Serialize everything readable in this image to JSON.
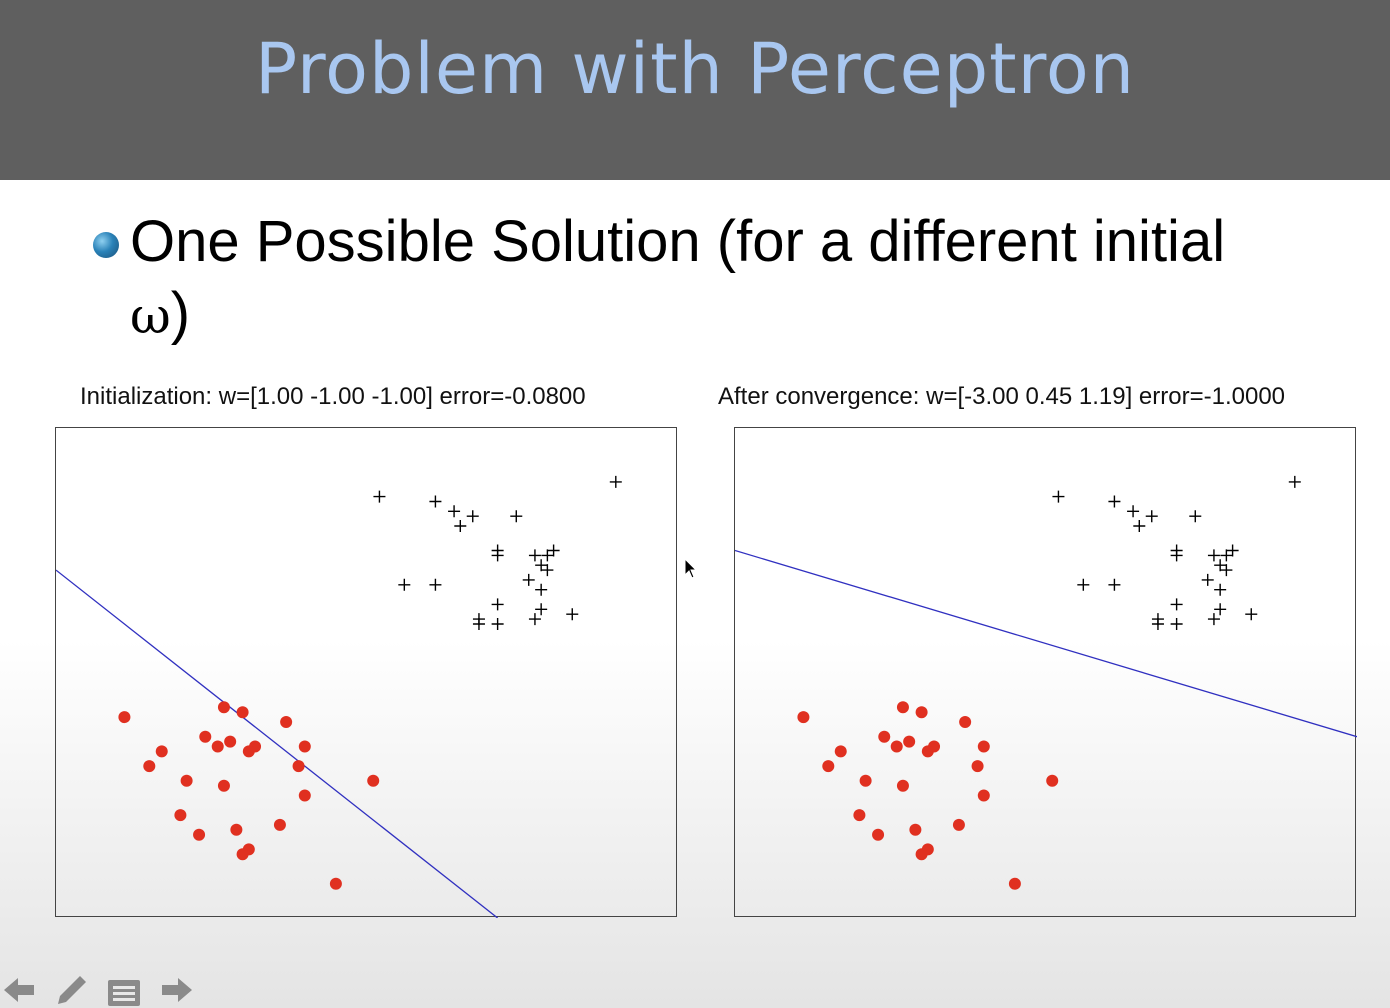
{
  "slide": {
    "title": "Problem with Perceptron",
    "bullet_line1": "One Possible Solution (for a different initial",
    "bullet_omega": "ω",
    "bullet_close": ")"
  },
  "toolbar": {
    "icons": [
      "arrow-left-icon",
      "pen-icon",
      "menu-icon",
      "arrow-right-icon"
    ]
  },
  "chart_data": [
    {
      "type": "scatter",
      "title": "Initialization: w=[1.00 -1.00 -1.00] error=-0.0800",
      "xlabel": "",
      "ylabel": "",
      "xlim": [
        0,
        10
      ],
      "ylim": [
        0,
        10
      ],
      "grid": false,
      "series": [
        {
          "marker": "plus",
          "color": "#000000",
          "points": [
            [
              5.2,
              8.6
            ],
            [
              6.1,
              8.5
            ],
            [
              6.4,
              8.3
            ],
            [
              6.7,
              8.2
            ],
            [
              6.5,
              8.0
            ],
            [
              7.4,
              8.2
            ],
            [
              9.0,
              8.9
            ],
            [
              7.1,
              7.5
            ],
            [
              7.1,
              7.4
            ],
            [
              7.7,
              7.4
            ],
            [
              7.9,
              7.4
            ],
            [
              8.0,
              7.5
            ],
            [
              7.8,
              7.2
            ],
            [
              7.9,
              7.1
            ],
            [
              7.6,
              6.9
            ],
            [
              5.6,
              6.8
            ],
            [
              6.1,
              6.8
            ],
            [
              7.8,
              6.7
            ],
            [
              7.1,
              6.4
            ],
            [
              7.8,
              6.3
            ],
            [
              8.3,
              6.2
            ],
            [
              6.8,
              6.1
            ],
            [
              6.8,
              6.0
            ],
            [
              7.1,
              6.0
            ],
            [
              7.7,
              6.1
            ]
          ]
        },
        {
          "marker": "dot",
          "color": "#e03020",
          "points": [
            [
              1.1,
              4.1
            ],
            [
              2.7,
              4.3
            ],
            [
              3.0,
              4.2
            ],
            [
              3.7,
              4.0
            ],
            [
              2.4,
              3.7
            ],
            [
              2.6,
              3.5
            ],
            [
              2.8,
              3.6
            ],
            [
              3.2,
              3.5
            ],
            [
              3.1,
              3.4
            ],
            [
              4.0,
              3.5
            ],
            [
              1.7,
              3.4
            ],
            [
              1.5,
              3.1
            ],
            [
              3.9,
              3.1
            ],
            [
              2.1,
              2.8
            ],
            [
              2.7,
              2.7
            ],
            [
              5.1,
              2.8
            ],
            [
              4.0,
              2.5
            ],
            [
              2.0,
              2.1
            ],
            [
              2.3,
              1.7
            ],
            [
              2.9,
              1.8
            ],
            [
              3.6,
              1.9
            ],
            [
              3.1,
              1.4
            ],
            [
              3.0,
              1.3
            ],
            [
              4.5,
              0.7
            ]
          ]
        }
      ],
      "decision_line": {
        "x": [
          0,
          7.1
        ],
        "y": [
          7.1,
          0
        ],
        "color": "#3030c0"
      }
    },
    {
      "type": "scatter",
      "title": "After convergence: w=[-3.00 0.45 1.19] error=-1.0000",
      "xlabel": "",
      "ylabel": "",
      "xlim": [
        0,
        10
      ],
      "ylim": [
        0,
        10
      ],
      "grid": false,
      "series": [
        {
          "marker": "plus",
          "color": "#000000",
          "points": [
            [
              5.2,
              8.6
            ],
            [
              6.1,
              8.5
            ],
            [
              6.4,
              8.3
            ],
            [
              6.7,
              8.2
            ],
            [
              6.5,
              8.0
            ],
            [
              7.4,
              8.2
            ],
            [
              9.0,
              8.9
            ],
            [
              7.1,
              7.5
            ],
            [
              7.1,
              7.4
            ],
            [
              7.7,
              7.4
            ],
            [
              7.9,
              7.4
            ],
            [
              8.0,
              7.5
            ],
            [
              7.8,
              7.2
            ],
            [
              7.9,
              7.1
            ],
            [
              7.6,
              6.9
            ],
            [
              5.6,
              6.8
            ],
            [
              6.1,
              6.8
            ],
            [
              7.8,
              6.7
            ],
            [
              7.1,
              6.4
            ],
            [
              7.8,
              6.3
            ],
            [
              8.3,
              6.2
            ],
            [
              6.8,
              6.1
            ],
            [
              6.8,
              6.0
            ],
            [
              7.1,
              6.0
            ],
            [
              7.7,
              6.1
            ]
          ]
        },
        {
          "marker": "dot",
          "color": "#e03020",
          "points": [
            [
              1.1,
              4.1
            ],
            [
              2.7,
              4.3
            ],
            [
              3.0,
              4.2
            ],
            [
              3.7,
              4.0
            ],
            [
              2.4,
              3.7
            ],
            [
              2.6,
              3.5
            ],
            [
              2.8,
              3.6
            ],
            [
              3.2,
              3.5
            ],
            [
              3.1,
              3.4
            ],
            [
              4.0,
              3.5
            ],
            [
              1.7,
              3.4
            ],
            [
              1.5,
              3.1
            ],
            [
              3.9,
              3.1
            ],
            [
              2.1,
              2.8
            ],
            [
              2.7,
              2.7
            ],
            [
              5.1,
              2.8
            ],
            [
              4.0,
              2.5
            ],
            [
              2.0,
              2.1
            ],
            [
              2.3,
              1.7
            ],
            [
              2.9,
              1.8
            ],
            [
              3.6,
              1.9
            ],
            [
              3.1,
              1.4
            ],
            [
              3.0,
              1.3
            ],
            [
              4.5,
              0.7
            ]
          ]
        }
      ],
      "decision_line": {
        "x": [
          0,
          10
        ],
        "y": [
          7.5,
          3.7
        ],
        "color": "#3030c0"
      }
    }
  ]
}
